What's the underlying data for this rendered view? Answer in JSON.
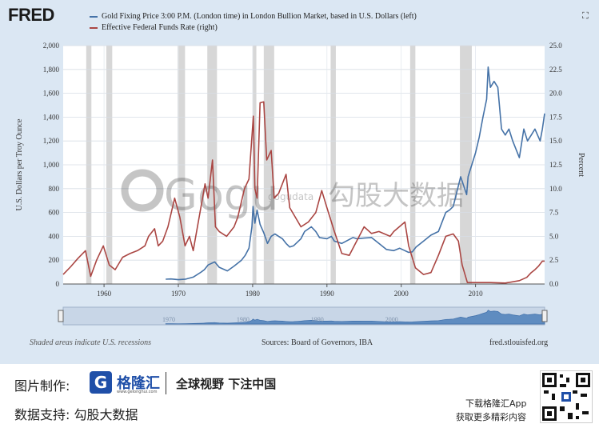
{
  "header": {
    "logo": "FRED",
    "legend": [
      {
        "label": "Gold Fixing Price 3:00 P.M. (London time) in London Bullion Market, based in U.S. Dollars (left)",
        "color": "#4572a7"
      },
      {
        "label": "Effective Federal Funds Rate (right)",
        "color": "#aa4643"
      }
    ],
    "expand_icon": "expand-icon"
  },
  "footer": {
    "note": "Shaded areas indicate U.S. recessions",
    "source": "Sources: Board of Governors, IBA",
    "site": "fred.stlouisfed.org"
  },
  "watermark": {
    "logo_text": "Gogu",
    "logo_small": "gogudata",
    "cn_text": "勾股大数据"
  },
  "banner": {
    "made_by_label": "图片制作:",
    "brand_name": "格隆汇",
    "brand_url": "www.gelonghui.com",
    "slogan": "全球视野 下注中国",
    "data_support": "数据支持:  勾股大数据",
    "app_line1": "下载格隆汇App",
    "app_line2": "获取更多精彩内容"
  },
  "chart_data": {
    "type": "line",
    "xlim": [
      1954.5,
      2019.3
    ],
    "xticks": [
      1960,
      1970,
      1980,
      1990,
      2000,
      2010
    ],
    "ylabel_left": "U.S. Dollars per Troy Ounce",
    "ylim_left": [
      0,
      2000
    ],
    "yticks_left": [
      "0",
      "200",
      "400",
      "600",
      "800",
      "1,000",
      "1,200",
      "1,400",
      "1,600",
      "1,800",
      "2,000"
    ],
    "ylabel_right": "Percent",
    "ylim_right": [
      0,
      25
    ],
    "yticks_right": [
      "0.0",
      "2.5",
      "5.0",
      "7.5",
      "10.0",
      "12.5",
      "15.0",
      "17.5",
      "20.0",
      "22.5",
      "25.0"
    ],
    "grid": true,
    "navigator_ticks": [
      1970,
      1980,
      1990,
      2000
    ],
    "recessions": [
      [
        1957.6,
        1958.3
      ],
      [
        1960.3,
        1961.1
      ],
      [
        1969.9,
        1970.9
      ],
      [
        1973.9,
        1975.2
      ],
      [
        1980.0,
        1980.5
      ],
      [
        1981.5,
        1982.9
      ],
      [
        1990.5,
        1991.2
      ],
      [
        2001.2,
        2001.9
      ],
      [
        2007.9,
        2009.5
      ]
    ],
    "series": [
      {
        "name": "Gold Fixing Price 3:00 P.M. (London time) in London Bullion Market, based in U.S. Dollars (left)",
        "color": "#4572a7",
        "axis": "left",
        "x": [
          1968.3,
          1969.0,
          1970.0,
          1971.0,
          1972.0,
          1973.0,
          1973.5,
          1974.0,
          1974.9,
          1975.5,
          1976.6,
          1977.5,
          1978.5,
          1979.0,
          1979.5,
          1979.9,
          1980.05,
          1980.3,
          1980.6,
          1981.0,
          1981.5,
          1982.0,
          1982.5,
          1983.0,
          1983.5,
          1984.0,
          1984.5,
          1985.0,
          1985.5,
          1986.0,
          1986.5,
          1987.0,
          1987.9,
          1988.5,
          1989.0,
          1990.0,
          1990.6,
          1991.0,
          1992.0,
          1993.5,
          1994.0,
          1995.0,
          1996.0,
          1997.0,
          1998.0,
          1999.0,
          1999.8,
          2000.5,
          2001.0,
          2001.5,
          2002.0,
          2003.0,
          2004.0,
          2005.0,
          2006.0,
          2006.5,
          2007.0,
          2008.0,
          2008.8,
          2009.0,
          2010.0,
          2010.5,
          2011.0,
          2011.5,
          2011.7,
          2012.0,
          2012.5,
          2013.0,
          2013.5,
          2014.0,
          2014.5,
          2015.0,
          2015.9,
          2016.5,
          2017.0,
          2017.5,
          2018.0,
          2018.7,
          2019.0,
          2019.3
        ],
        "values": [
          40,
          42,
          36,
          41,
          58,
          97,
          120,
          160,
          185,
          140,
          110,
          150,
          200,
          240,
          300,
          480,
          650,
          510,
          620,
          500,
          430,
          340,
          400,
          420,
          400,
          380,
          340,
          310,
          320,
          350,
          380,
          440,
          480,
          440,
          390,
          380,
          400,
          360,
          340,
          390,
          380,
          385,
          390,
          340,
          290,
          280,
          300,
          280,
          265,
          270,
          310,
          360,
          410,
          440,
          600,
          620,
          650,
          900,
          750,
          900,
          1100,
          1230,
          1400,
          1550,
          1820,
          1650,
          1700,
          1650,
          1300,
          1250,
          1300,
          1200,
          1060,
          1300,
          1200,
          1250,
          1300,
          1200,
          1300,
          1430
        ]
      },
      {
        "name": "Effective Federal Funds Rate (right)",
        "color": "#aa4643",
        "axis": "right",
        "x": [
          1954.5,
          1955.5,
          1956.5,
          1957.5,
          1958.2,
          1959.0,
          1959.9,
          1960.7,
          1961.5,
          1962.5,
          1963.5,
          1964.5,
          1965.5,
          1966.0,
          1966.8,
          1967.3,
          1967.9,
          1968.6,
          1969.5,
          1970.2,
          1970.9,
          1971.5,
          1972.0,
          1972.8,
          1973.6,
          1974.0,
          1974.6,
          1975.0,
          1975.5,
          1976.5,
          1977.5,
          1978.0,
          1978.9,
          1979.5,
          1980.1,
          1980.3,
          1980.6,
          1981.0,
          1981.5,
          1981.9,
          1982.5,
          1982.9,
          1983.5,
          1984.5,
          1985.0,
          1986.5,
          1987.5,
          1988.5,
          1989.3,
          1990.0,
          1991.0,
          1992.0,
          1993.0,
          1994.0,
          1995.0,
          1996.0,
          1997.0,
          1998.5,
          1999.0,
          2000.5,
          2001.0,
          2001.9,
          2003.0,
          2004.0,
          2005.0,
          2006.0,
          2007.0,
          2007.7,
          2008.2,
          2008.9,
          2010.0,
          2012.0,
          2014.0,
          2015.9,
          2016.9,
          2017.5,
          2018.0,
          2018.5,
          2019.0,
          2019.3
        ],
        "values": [
          1.0,
          1.8,
          2.7,
          3.5,
          0.8,
          2.5,
          4.0,
          2.0,
          1.5,
          2.8,
          3.2,
          3.5,
          4.0,
          5.0,
          5.8,
          4.0,
          4.5,
          6.0,
          9.0,
          7.0,
          4.0,
          5.0,
          3.5,
          7.0,
          10.5,
          9.0,
          13.0,
          6.0,
          5.5,
          5.0,
          6.0,
          7.0,
          10.0,
          11.0,
          17.6,
          10.0,
          9.0,
          19.0,
          19.1,
          13.0,
          14.0,
          9.0,
          9.5,
          11.5,
          8.0,
          6.0,
          6.5,
          7.5,
          9.8,
          8.0,
          5.5,
          3.2,
          3.0,
          4.5,
          6.0,
          5.3,
          5.5,
          5.0,
          5.5,
          6.5,
          4.0,
          1.7,
          1.0,
          1.2,
          3.0,
          5.0,
          5.25,
          4.5,
          2.0,
          0.15,
          0.15,
          0.15,
          0.1,
          0.35,
          0.7,
          1.2,
          1.5,
          1.9,
          2.4,
          2.4
        ]
      }
    ]
  }
}
